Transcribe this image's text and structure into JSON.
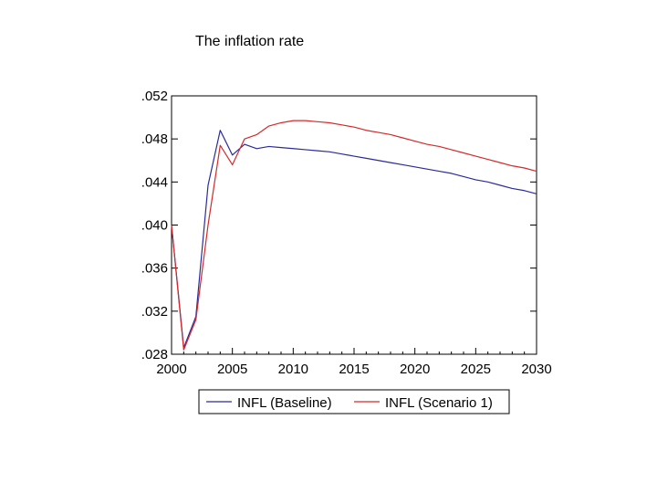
{
  "chart_data": {
    "type": "line",
    "title": "The inflation rate",
    "xlabel": "",
    "ylabel": "",
    "xlim": [
      2000,
      2030
    ],
    "ylim": [
      0.028,
      0.052
    ],
    "x_ticks": [
      2000,
      2005,
      2010,
      2015,
      2020,
      2025,
      2030
    ],
    "x_tick_labels": [
      "2000",
      "2005",
      "2010",
      "2015",
      "2020",
      "2025",
      "2030"
    ],
    "y_ticks": [
      0.028,
      0.032,
      0.036,
      0.04,
      0.044,
      0.048,
      0.052
    ],
    "y_tick_labels": [
      ".028",
      ".032",
      ".036",
      ".040",
      ".044",
      ".048",
      ".052"
    ],
    "grid": false,
    "legend_position": "bottom",
    "x": [
      2000,
      2001,
      2002,
      2003,
      2004,
      2005,
      2006,
      2007,
      2008,
      2009,
      2010,
      2011,
      2012,
      2013,
      2014,
      2015,
      2016,
      2017,
      2018,
      2019,
      2020,
      2021,
      2022,
      2023,
      2024,
      2025,
      2026,
      2027,
      2028,
      2029,
      2030
    ],
    "series": [
      {
        "name": "INFL (Baseline)",
        "color": "#2b2b9a",
        "values": [
          0.04,
          0.0286,
          0.0315,
          0.0437,
          0.0488,
          0.0465,
          0.0475,
          0.0471,
          0.0473,
          0.0472,
          0.0471,
          0.047,
          0.0469,
          0.0468,
          0.0466,
          0.0464,
          0.0462,
          0.046,
          0.0458,
          0.0456,
          0.0454,
          0.0452,
          0.045,
          0.0448,
          0.0445,
          0.0442,
          0.044,
          0.0437,
          0.0434,
          0.0432,
          0.0429
        ]
      },
      {
        "name": "INFL (Scenario 1)",
        "color": "#d42a2a",
        "values": [
          0.04,
          0.0284,
          0.0312,
          0.04,
          0.0474,
          0.0456,
          0.048,
          0.0484,
          0.0492,
          0.0495,
          0.0497,
          0.0497,
          0.0496,
          0.0495,
          0.0493,
          0.0491,
          0.0488,
          0.0486,
          0.0484,
          0.0481,
          0.0478,
          0.0475,
          0.0473,
          0.047,
          0.0467,
          0.0464,
          0.0461,
          0.0458,
          0.0455,
          0.0453,
          0.045
        ]
      }
    ]
  }
}
